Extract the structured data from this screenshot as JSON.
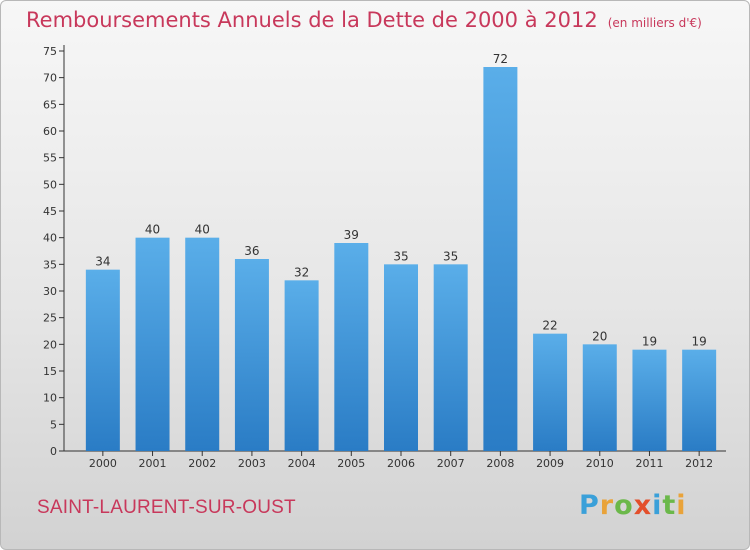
{
  "title": "Remboursements Annuels de la Dette de 2000 à 2012",
  "unit_note": "(en milliers d'€)",
  "place_name": "SAINT-LAURENT-SUR-OUST",
  "logo": {
    "p": "P",
    "r": "r",
    "o": "o",
    "x": "x",
    "i1": "i",
    "t": "t",
    "i2": "i"
  },
  "colors": {
    "bar": "#4a9fe0",
    "bar_dark": "#2c7ec8",
    "title": "#c8385b"
  },
  "chart_data": {
    "type": "bar",
    "title": "Remboursements Annuels de la Dette de 2000 à 2012",
    "xlabel": "",
    "ylabel": "",
    "categories": [
      "2000",
      "2001",
      "2002",
      "2003",
      "2004",
      "2005",
      "2006",
      "2007",
      "2008",
      "2009",
      "2010",
      "2011",
      "2012"
    ],
    "values": [
      34,
      40,
      40,
      36,
      32,
      39,
      35,
      35,
      72,
      22,
      20,
      19,
      19
    ],
    "ylim": [
      0,
      75
    ],
    "yticks": [
      0,
      5,
      10,
      15,
      20,
      25,
      30,
      35,
      40,
      45,
      50,
      55,
      60,
      65,
      70,
      75
    ],
    "grid": false,
    "legend": "none"
  }
}
